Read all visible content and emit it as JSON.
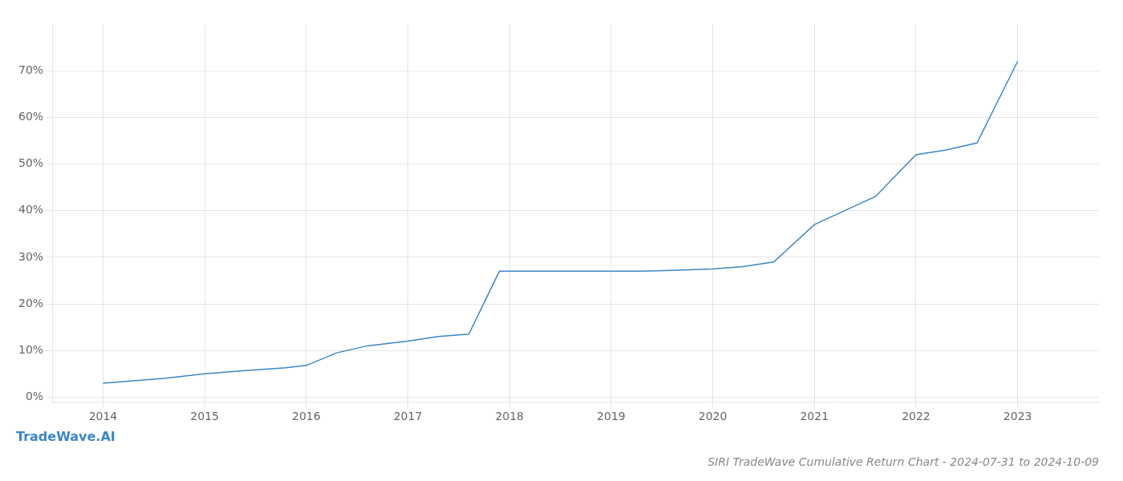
{
  "chart_data": {
    "type": "line",
    "title": "SIRI TradeWave Cumulative Return Chart - 2024-07-31 to 2024-10-09",
    "annotations": [
      "TradeWave.AI"
    ],
    "color": "#3a87c8",
    "x": [
      2014.0,
      2014.3,
      2014.6,
      2015.0,
      2015.4,
      2015.8,
      2016.0,
      2016.3,
      2016.6,
      2017.0,
      2017.3,
      2017.6,
      2017.9,
      2018.3,
      2018.6,
      2019.0,
      2019.3,
      2019.6,
      2020.0,
      2020.3,
      2020.6,
      2021.0,
      2021.3,
      2021.6,
      2022.0,
      2022.3,
      2022.6,
      2023.0
    ],
    "values": [
      0.03,
      0.035,
      0.04,
      0.05,
      0.057,
      0.063,
      0.068,
      0.095,
      0.11,
      0.12,
      0.13,
      0.135,
      0.27,
      0.27,
      0.27,
      0.27,
      0.27,
      0.272,
      0.275,
      0.28,
      0.29,
      0.37,
      0.4,
      0.43,
      0.52,
      0.53,
      0.545,
      0.72
    ],
    "xlim": [
      2013.5,
      2023.8
    ],
    "xticks": [
      2014,
      2015,
      2016,
      2017,
      2018,
      2019,
      2020,
      2021,
      2022,
      2023
    ],
    "ylim": [
      -0.01,
      0.8
    ],
    "yticks": [
      {
        "value": 0.0,
        "label": "0%"
      },
      {
        "value": 0.1,
        "label": "10%"
      },
      {
        "value": 0.2,
        "label": "20%"
      },
      {
        "value": 0.3,
        "label": "30%"
      },
      {
        "value": 0.4,
        "label": "40%"
      },
      {
        "value": 0.5,
        "label": "50%"
      },
      {
        "value": 0.6,
        "label": "60%"
      },
      {
        "value": 0.7,
        "label": "70%"
      }
    ],
    "grid": true
  }
}
